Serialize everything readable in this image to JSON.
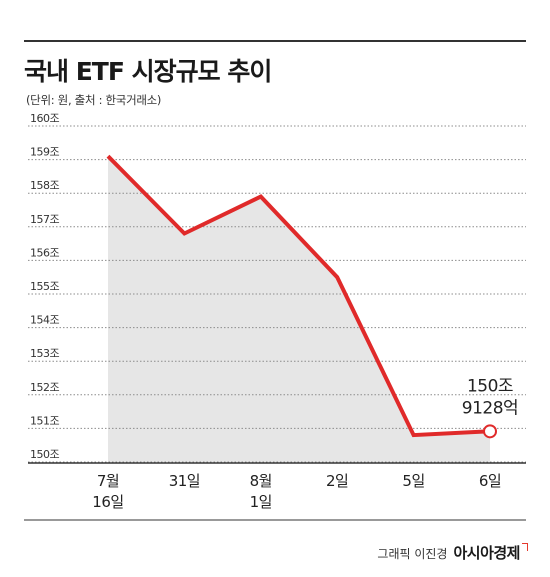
{
  "header": {
    "title": "국내 ETF 시장규모 추이",
    "subtitle": "(단위: 원, 출처 : 한국거래소)"
  },
  "footer": {
    "credit": "그래픽 이진경",
    "brand": "아시아경제"
  },
  "colors": {
    "line": "#e02a2a",
    "area": "#e6e6e6",
    "grid": "#8c8c8c"
  },
  "chart_data": {
    "type": "area",
    "categories": [
      "7월 16일",
      "31일",
      "8월 1일",
      "2일",
      "5일",
      "6일"
    ],
    "x_labels": [
      [
        "7월",
        "16일"
      ],
      [
        "31일"
      ],
      [
        "8월",
        "1일"
      ],
      [
        "2일"
      ],
      [
        "5일"
      ],
      [
        "6일"
      ]
    ],
    "y_ticks": [
      "150조",
      "151조",
      "152조",
      "153조",
      "154조",
      "155조",
      "156조",
      "157조",
      "158조",
      "159조",
      "160조"
    ],
    "ylim": [
      150,
      160
    ],
    "series": [
      {
        "values": [
          159.1,
          156.8,
          157.9,
          155.5,
          150.8,
          150.9128
        ]
      }
    ],
    "grid": true,
    "annotation": {
      "lines": [
        "150조",
        "9128억"
      ]
    }
  }
}
